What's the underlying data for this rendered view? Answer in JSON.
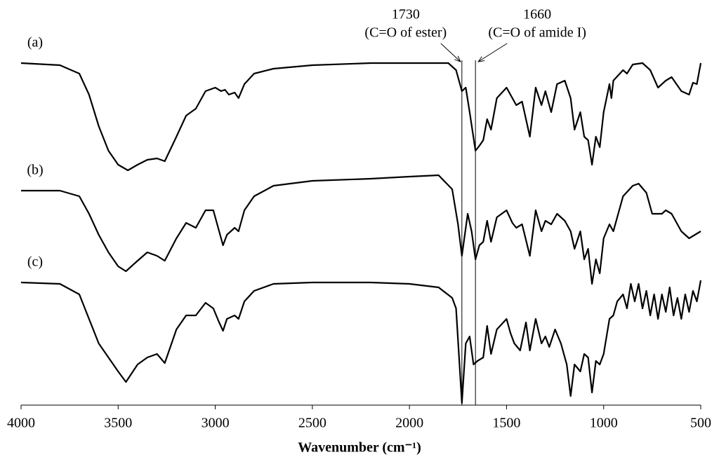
{
  "chart_data": {
    "type": "line",
    "xlabel": "Wavenumber (cm⁻¹)",
    "xlim": [
      4000,
      500
    ],
    "xticks": [
      4000,
      3500,
      3000,
      2500,
      2000,
      1500,
      1000,
      500
    ],
    "ylim": [
      0,
      500
    ],
    "annotations": [
      {
        "x": 1730,
        "label": "1730",
        "text": "(C=O of ester)"
      },
      {
        "x": 1660,
        "label": "1660",
        "text": "(C=O of amide I)"
      }
    ],
    "series": [
      {
        "name": "(a)",
        "color": "#000000",
        "x": [
          4000,
          3800,
          3700,
          3650,
          3600,
          3550,
          3500,
          3450,
          3400,
          3350,
          3300,
          3260,
          3200,
          3150,
          3100,
          3050,
          3000,
          2970,
          2950,
          2930,
          2900,
          2880,
          2850,
          2800,
          2700,
          2500,
          2200,
          2000,
          1800,
          1760,
          1730,
          1710,
          1690,
          1660,
          1640,
          1620,
          1600,
          1580,
          1550,
          1500,
          1470,
          1450,
          1420,
          1380,
          1350,
          1320,
          1300,
          1270,
          1240,
          1200,
          1170,
          1150,
          1120,
          1100,
          1080,
          1060,
          1040,
          1020,
          1000,
          970,
          960,
          950,
          900,
          880,
          850,
          800,
          760,
          720,
          680,
          650,
          600,
          560,
          540,
          520,
          500
        ],
        "values": [
          488,
          485,
          473,
          443,
          398,
          363,
          343,
          335,
          343,
          350,
          352,
          348,
          383,
          413,
          423,
          448,
          453,
          448,
          450,
          443,
          446,
          438,
          458,
          473,
          480,
          485,
          488,
          488,
          488,
          478,
          448,
          453,
          418,
          363,
          370,
          378,
          408,
          393,
          438,
          453,
          438,
          428,
          433,
          383,
          453,
          428,
          448,
          418,
          458,
          463,
          438,
          393,
          418,
          383,
          378,
          343,
          383,
          368,
          418,
          458,
          438,
          463,
          478,
          473,
          486,
          488,
          478,
          453,
          463,
          468,
          448,
          443,
          460,
          458,
          488
        ]
      },
      {
        "name": "(b)",
        "color": "#000000",
        "x": [
          4000,
          3800,
          3700,
          3650,
          3600,
          3550,
          3500,
          3460,
          3400,
          3350,
          3300,
          3260,
          3200,
          3150,
          3100,
          3050,
          3010,
          2980,
          2960,
          2940,
          2900,
          2880,
          2850,
          2800,
          2700,
          2500,
          2200,
          2000,
          1850,
          1780,
          1750,
          1730,
          1700,
          1680,
          1660,
          1640,
          1620,
          1600,
          1580,
          1550,
          1500,
          1470,
          1450,
          1420,
          1380,
          1350,
          1320,
          1300,
          1270,
          1240,
          1200,
          1170,
          1150,
          1120,
          1100,
          1080,
          1060,
          1040,
          1020,
          1000,
          970,
          950,
          900,
          850,
          820,
          780,
          750,
          700,
          680,
          650,
          600,
          560,
          530,
          500
        ],
        "values": [
          306,
          306,
          298,
          273,
          243,
          218,
          198,
          191,
          206,
          218,
          213,
          206,
          238,
          260,
          253,
          278,
          278,
          248,
          228,
          243,
          253,
          248,
          278,
          298,
          313,
          320,
          323,
          326,
          328,
          308,
          258,
          213,
          273,
          248,
          208,
          228,
          233,
          263,
          233,
          268,
          278,
          260,
          253,
          258,
          213,
          278,
          248,
          263,
          258,
          273,
          263,
          248,
          223,
          248,
          208,
          223,
          173,
          208,
          188,
          238,
          258,
          248,
          298,
          313,
          316,
          303,
          273,
          273,
          278,
          273,
          248,
          238,
          243,
          248
        ]
      },
      {
        "name": "(c)",
        "color": "#000000",
        "x": [
          4000,
          3800,
          3700,
          3650,
          3600,
          3550,
          3500,
          3460,
          3400,
          3350,
          3300,
          3260,
          3200,
          3150,
          3100,
          3050,
          3010,
          2980,
          2960,
          2940,
          2900,
          2880,
          2850,
          2800,
          2700,
          2500,
          2200,
          2000,
          1850,
          1780,
          1760,
          1740,
          1730,
          1710,
          1690,
          1670,
          1650,
          1620,
          1600,
          1580,
          1550,
          1500,
          1480,
          1460,
          1430,
          1400,
          1380,
          1350,
          1320,
          1300,
          1280,
          1250,
          1220,
          1190,
          1170,
          1150,
          1120,
          1100,
          1080,
          1060,
          1040,
          1020,
          1000,
          970,
          950,
          930,
          900,
          880,
          860,
          840,
          820,
          800,
          780,
          760,
          740,
          720,
          700,
          680,
          660,
          640,
          620,
          600,
          580,
          560,
          540,
          520,
          500
        ],
        "values": [
          175,
          173,
          158,
          123,
          88,
          68,
          48,
          33,
          58,
          68,
          73,
          60,
          108,
          128,
          128,
          146,
          138,
          118,
          106,
          123,
          128,
          123,
          148,
          163,
          173,
          175,
          175,
          173,
          168,
          153,
          138,
          48,
          3,
          88,
          98,
          58,
          63,
          68,
          113,
          73,
          108,
          123,
          103,
          88,
          78,
          118,
          78,
          123,
          88,
          98,
          83,
          108,
          88,
          58,
          13,
          58,
          48,
          73,
          68,
          18,
          63,
          58,
          73,
          123,
          128,
          148,
          158,
          138,
          173,
          148,
          173,
          138,
          163,
          128,
          158,
          123,
          158,
          133,
          168,
          128,
          153,
          123,
          158,
          133,
          163,
          148,
          178
        ]
      }
    ]
  }
}
